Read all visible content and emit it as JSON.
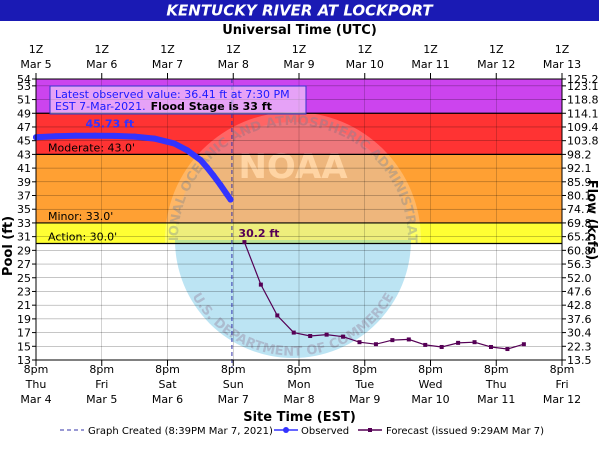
{
  "chart_data": {
    "type": "line",
    "title": "KENTUCKY RIVER AT LOCKPORT",
    "top_axis_title": "Universal Time (UTC)",
    "top_ticks": [
      {
        "hour": "1Z",
        "date": "Mar  5"
      },
      {
        "hour": "1Z",
        "date": "Mar  6"
      },
      {
        "hour": "1Z",
        "date": "Mar  7"
      },
      {
        "hour": "1Z",
        "date": "Mar  8"
      },
      {
        "hour": "1Z",
        "date": "Mar  9"
      },
      {
        "hour": "1Z",
        "date": "Mar 10"
      },
      {
        "hour": "1Z",
        "date": "Mar 11"
      },
      {
        "hour": "1Z",
        "date": "Mar 12"
      },
      {
        "hour": "1Z",
        "date": "Mar 13"
      }
    ],
    "bottom_axis_title": "Site Time (EST)",
    "bottom_ticks": [
      {
        "time": "8pm",
        "day": "Thu",
        "date": "Mar 4"
      },
      {
        "time": "8pm",
        "day": "Fri",
        "date": "Mar 5"
      },
      {
        "time": "8pm",
        "day": "Sat",
        "date": "Mar 6"
      },
      {
        "time": "8pm",
        "day": "Sun",
        "date": "Mar 7"
      },
      {
        "time": "8pm",
        "day": "Mon",
        "date": "Mar 8"
      },
      {
        "time": "8pm",
        "day": "Tue",
        "date": "Mar 9"
      },
      {
        "time": "8pm",
        "day": "Wed",
        "date": "Mar 10"
      },
      {
        "time": "8pm",
        "day": "Thu",
        "date": "Mar 11"
      },
      {
        "time": "8pm",
        "day": "Fri",
        "date": "Mar 12"
      }
    ],
    "x_range_days": [
      0,
      8
    ],
    "y_left_label": "Pool (ft)",
    "y_left_range": [
      13,
      54
    ],
    "y_left_ticks": [
      13,
      15,
      17,
      19,
      21,
      23,
      25,
      27,
      29,
      31,
      33,
      35,
      37,
      39,
      41,
      43,
      45,
      47,
      49,
      51,
      53,
      54
    ],
    "y_right_label": "Flow (kcfs)",
    "y_right_ticks": [
      "13.5",
      "22.3",
      "30.4",
      "37.6",
      "42.8",
      "47.6",
      "52.0",
      "56.3",
      "60.8",
      "65.2",
      "69.8",
      "74.7",
      "80.1",
      "85.9",
      "92.1",
      "98.2",
      "103.8",
      "109.4",
      "114.1",
      "118.8",
      "123.1",
      "125.2"
    ],
    "zones": [
      {
        "name": "Moderate",
        "label": "Moderate: 43.0'",
        "from": 43,
        "to": 49,
        "color": "#ff3333"
      },
      {
        "name": "Minor",
        "label": "Minor: 33.0'",
        "from": 33,
        "to": 43,
        "color": "#ffa033"
      },
      {
        "name": "Action",
        "label": "Action: 30.0'",
        "from": 30,
        "to": 33,
        "color": "#ffff33"
      },
      {
        "name": "Major",
        "label": "",
        "from": 49,
        "to": 54,
        "color": "#cc44ee"
      }
    ],
    "observed": {
      "name": "Observed",
      "color": "#3333ff",
      "peak_label": "45.73 ft",
      "x": [
        0.0,
        0.3,
        0.6,
        0.9,
        1.2,
        1.5,
        1.8,
        2.1,
        2.3,
        2.5,
        2.6,
        2.7,
        2.8,
        2.9,
        2.96
      ],
      "y": [
        45.5,
        45.65,
        45.73,
        45.73,
        45.7,
        45.6,
        45.3,
        44.6,
        43.6,
        42.2,
        41.1,
        39.9,
        38.6,
        37.2,
        36.41
      ]
    },
    "forecast": {
      "name": "Forecast (issued 9:29AM Mar 7)",
      "color": "#550055",
      "start_label": "30.2 ft",
      "x": [
        3.17,
        3.42,
        3.67,
        3.92,
        4.17,
        4.42,
        4.67,
        4.92,
        5.17,
        5.42,
        5.67,
        5.92,
        6.17,
        6.42,
        6.67,
        6.92,
        7.17,
        7.42
      ],
      "y": [
        30.2,
        24.0,
        19.5,
        17.0,
        16.5,
        16.7,
        16.4,
        15.6,
        15.3,
        15.9,
        16.0,
        15.2,
        14.9,
        15.5,
        15.6,
        14.9,
        14.6,
        15.3
      ]
    },
    "graph_created_day": 2.98,
    "annotation": {
      "line1": "Latest observed value: 36.41 ft at 7:30 PM",
      "line2a": "EST 7-Mar-2021.",
      "line2b": "Flood Stage is 33 ft"
    },
    "legend": {
      "graph_created": "Graph Created (8:39PM Mar 7, 2021)",
      "observed": "Observed",
      "forecast": "Forecast (issued 9:29AM Mar 7)"
    },
    "watermark": {
      "center": "NOAA",
      "outer": "NATIONAL OCEANIC AND ATMOSPHERIC ADMINISTRATION",
      "bottom": "U.S. DEPARTMENT OF COMMERCE"
    },
    "colors": {
      "title_bg": "#1a1ab4",
      "border": "#000000",
      "below_action": "#ffffff"
    }
  }
}
